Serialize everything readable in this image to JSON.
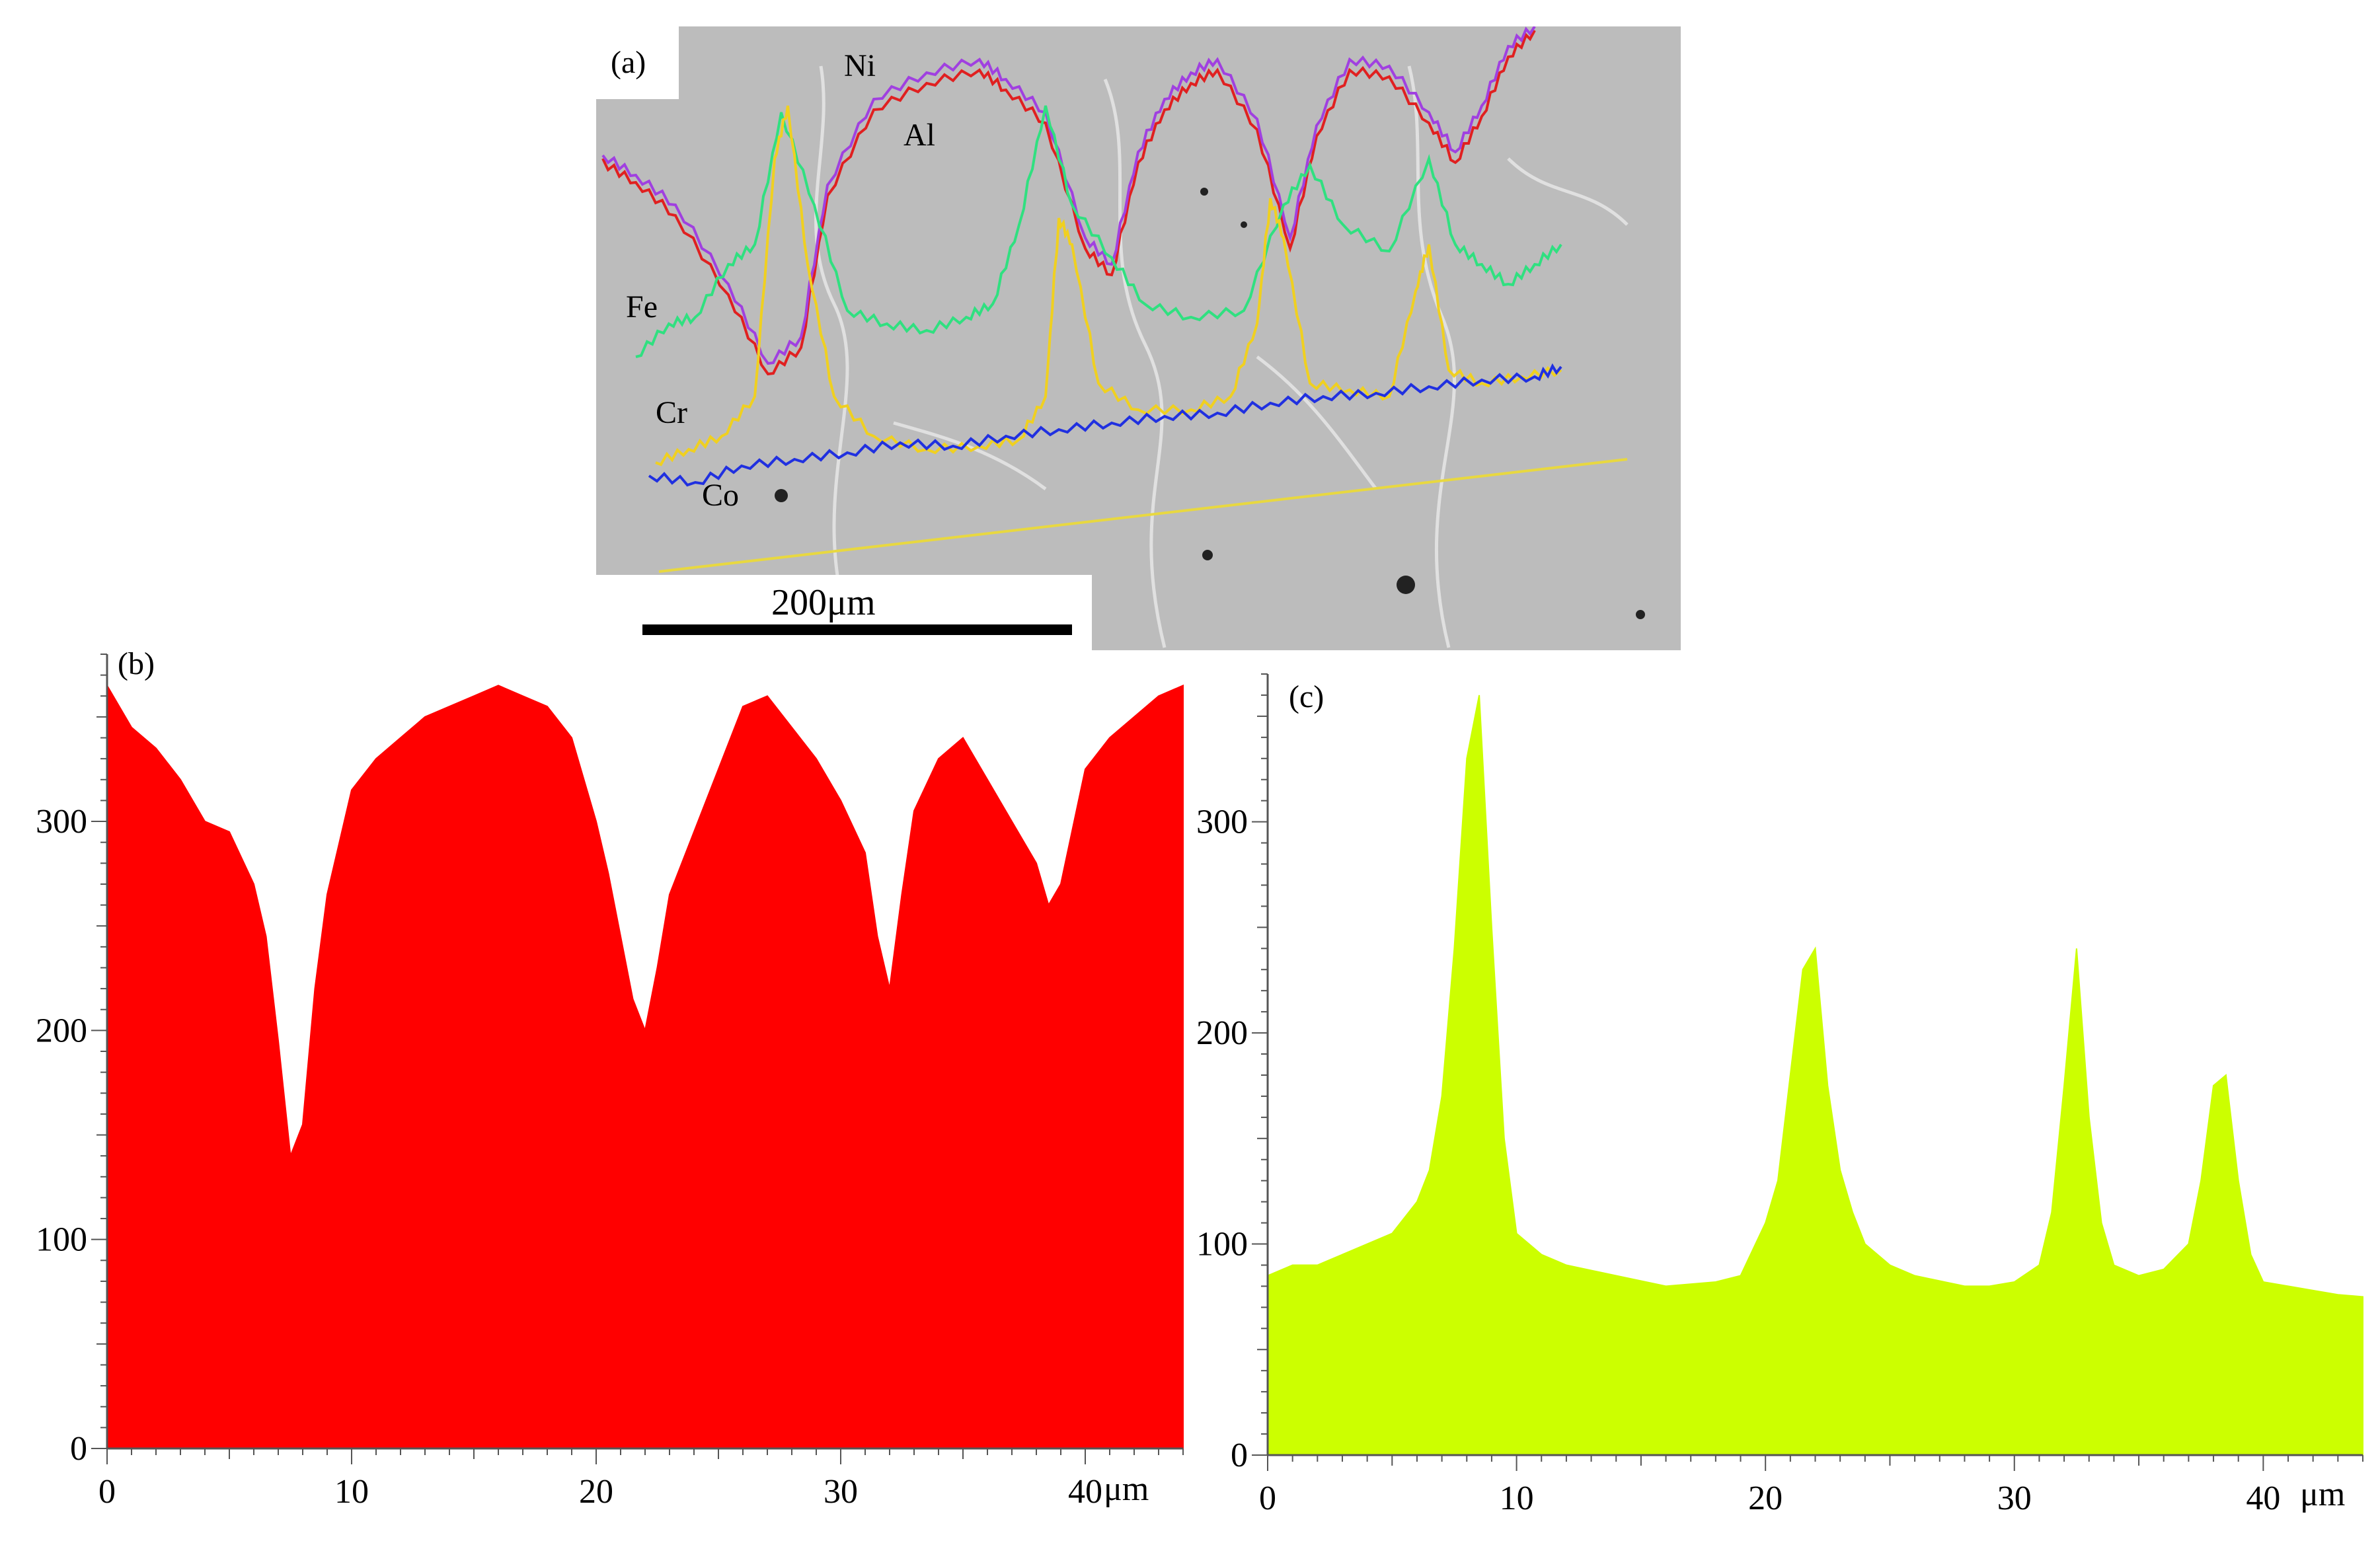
{
  "panel_a": {
    "label": "(a)",
    "scale_bar": "200μm",
    "element_labels": {
      "ni": "Ni",
      "al": "Al",
      "fe": "Fe",
      "cr": "Cr",
      "co": "Co"
    },
    "colors": {
      "ni": "#a040e0",
      "al": "#e02020",
      "fe": "#30e080",
      "cr": "#f0d020",
      "co": "#2030e0",
      "scan_line": "#e8d840",
      "background": "#bdbdbd"
    }
  },
  "chart_data": [
    {
      "type": "area",
      "panel_label": "(b)",
      "x_unit": "μm",
      "xlim": [
        0,
        44
      ],
      "ylim": [
        0,
        380
      ],
      "xticks": [
        0,
        10,
        20,
        30,
        40
      ],
      "yticks": [
        0,
        100,
        200,
        300
      ],
      "color": "#ff0000",
      "grid": false,
      "x": [
        0,
        1,
        2,
        3,
        4,
        5,
        6,
        6.5,
        7,
        7.5,
        8,
        8.5,
        9,
        10,
        11,
        12,
        13,
        14,
        15,
        16,
        17,
        18,
        19,
        20,
        20.5,
        21,
        21.5,
        22,
        22.5,
        23,
        24,
        25,
        26,
        27,
        28,
        29,
        30,
        31,
        31.5,
        32,
        32.5,
        33,
        34,
        35,
        36,
        37,
        38,
        38.5,
        39,
        40,
        41,
        42,
        43,
        44
      ],
      "values": [
        365,
        345,
        335,
        320,
        300,
        295,
        270,
        245,
        195,
        140,
        155,
        220,
        265,
        315,
        330,
        340,
        350,
        355,
        360,
        365,
        360,
        355,
        340,
        300,
        275,
        245,
        215,
        200,
        230,
        265,
        295,
        325,
        355,
        360,
        345,
        330,
        310,
        285,
        245,
        220,
        265,
        305,
        330,
        340,
        320,
        300,
        280,
        260,
        270,
        325,
        340,
        350,
        360,
        365
      ]
    },
    {
      "type": "area",
      "panel_label": "(c)",
      "x_unit": "μm",
      "xlim": [
        0,
        44
      ],
      "ylim": [
        0,
        370
      ],
      "xticks": [
        0,
        10,
        20,
        30,
        40
      ],
      "yticks": [
        0,
        100,
        200,
        300
      ],
      "color": "#ccff00",
      "grid": false,
      "x": [
        0,
        1,
        2,
        3,
        4,
        5,
        6,
        6.5,
        7,
        7.5,
        8,
        8.5,
        9,
        9.5,
        10,
        11,
        12,
        14,
        16,
        18,
        19,
        20,
        20.5,
        21,
        21.5,
        22,
        22.5,
        23,
        23.5,
        24,
        25,
        26,
        28,
        29,
        30,
        31,
        31.5,
        32,
        32.5,
        33,
        33.5,
        34,
        35,
        36,
        37,
        37.5,
        38,
        38.5,
        39,
        39.5,
        40,
        41,
        42,
        43,
        44
      ],
      "values": [
        85,
        90,
        90,
        95,
        100,
        105,
        120,
        135,
        170,
        240,
        330,
        360,
        250,
        150,
        105,
        95,
        90,
        85,
        80,
        82,
        85,
        110,
        130,
        180,
        230,
        240,
        175,
        135,
        115,
        100,
        90,
        85,
        80,
        80,
        82,
        90,
        115,
        175,
        240,
        160,
        110,
        90,
        85,
        88,
        100,
        130,
        175,
        180,
        130,
        95,
        82,
        80,
        78,
        76,
        75
      ]
    }
  ]
}
